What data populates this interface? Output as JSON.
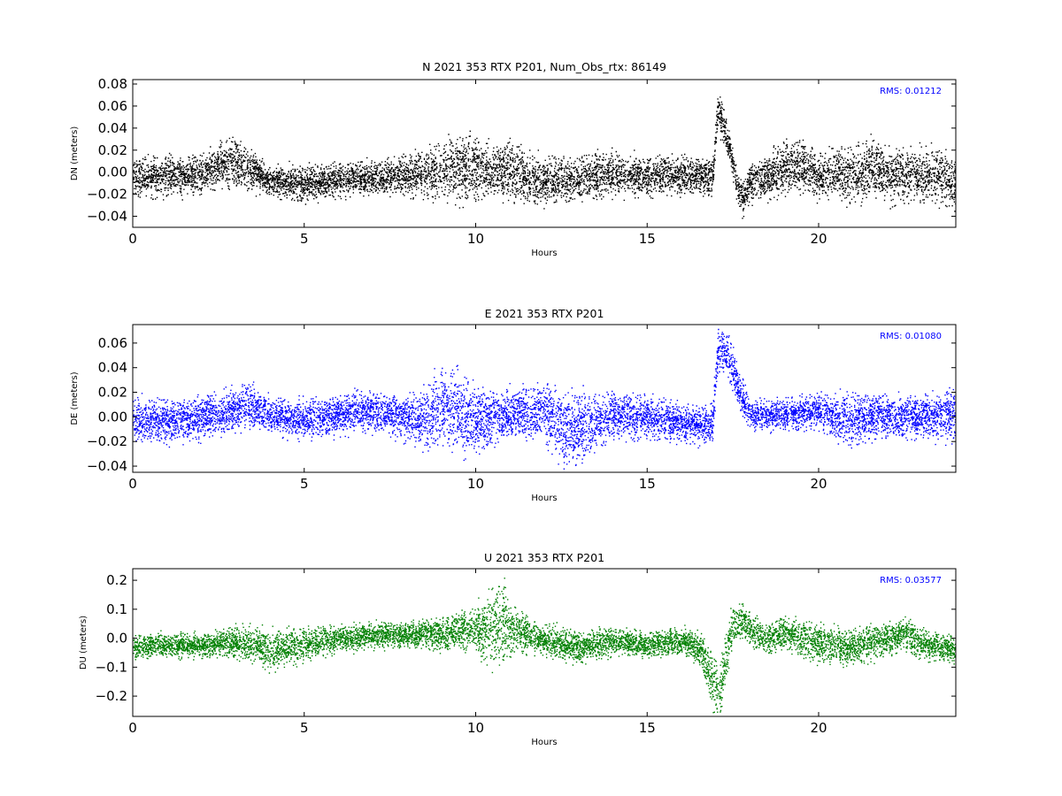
{
  "chart_data": [
    {
      "type": "scatter",
      "title": "N 2021 353 RTX  P201, Num_Obs_rtx: 86149",
      "xlabel": "Hours",
      "ylabel": "DN (meters)",
      "xlim": [
        0,
        24
      ],
      "ylim": [
        -0.05,
        0.084
      ],
      "xticks": [
        "0",
        "5",
        "10",
        "15",
        "20"
      ],
      "yticks": [
        "0.08",
        "0.06",
        "0.04",
        "0.02",
        "0.00",
        "−0.02",
        "−0.04"
      ],
      "xtick_values": [
        0,
        5,
        10,
        15,
        20
      ],
      "ytick_values": [
        0.08,
        0.06,
        0.04,
        0.02,
        0.0,
        -0.02,
        -0.04
      ],
      "color": "#000000",
      "annotation": "RMS:  0.01212",
      "annotation_color": "#0000ff",
      "grid": false,
      "series_trend": {
        "x": [
          0,
          1,
          2,
          2.5,
          3,
          3.5,
          4,
          5,
          6,
          7,
          8,
          9,
          9.5,
          10,
          10.5,
          11,
          12,
          13,
          14,
          15,
          16,
          16.9,
          17.05,
          17.2,
          17.4,
          17.6,
          17.8,
          18,
          18.5,
          19,
          19.5,
          20,
          20.5,
          21,
          21.5,
          22,
          22.5,
          23,
          23.5,
          24
        ],
        "y": [
          -0.005,
          -0.003,
          -0.002,
          0.008,
          0.009,
          0.002,
          -0.008,
          -0.01,
          -0.006,
          -0.004,
          -0.002,
          0.002,
          0.005,
          0.003,
          0.0,
          0.002,
          -0.008,
          -0.006,
          0.0,
          -0.003,
          -0.002,
          -0.004,
          0.06,
          0.045,
          0.02,
          -0.01,
          -0.025,
          -0.008,
          -0.002,
          0.004,
          0.006,
          -0.004,
          -0.002,
          0.0,
          0.003,
          -0.003,
          0.0,
          -0.004,
          -0.002,
          -0.01
        ],
        "spread": [
          0.008,
          0.008,
          0.008,
          0.009,
          0.01,
          0.008,
          0.007,
          0.007,
          0.007,
          0.007,
          0.008,
          0.012,
          0.014,
          0.013,
          0.011,
          0.012,
          0.01,
          0.009,
          0.009,
          0.008,
          0.008,
          0.008,
          0.008,
          0.008,
          0.006,
          0.006,
          0.007,
          0.008,
          0.009,
          0.01,
          0.011,
          0.009,
          0.01,
          0.012,
          0.012,
          0.011,
          0.011,
          0.011,
          0.011,
          0.011
        ]
      }
    },
    {
      "type": "scatter",
      "title": "E 2021 353 RTX  P201",
      "xlabel": "Hours",
      "ylabel": "DE (meters)",
      "xlim": [
        0,
        24
      ],
      "ylim": [
        -0.045,
        0.075
      ],
      "xticks": [
        "0",
        "5",
        "10",
        "15",
        "20"
      ],
      "yticks": [
        "0.06",
        "0.04",
        "0.02",
        "0.00",
        "−0.02",
        "−0.04"
      ],
      "xtick_values": [
        0,
        5,
        10,
        15,
        20
      ],
      "ytick_values": [
        0.06,
        0.04,
        0.02,
        0.0,
        -0.02,
        -0.04
      ],
      "color": "#0000ff",
      "annotation": "RMS:  0.01080",
      "annotation_color": "#0000ff",
      "grid": false,
      "series_trend": {
        "x": [
          0,
          1,
          2,
          3,
          3.3,
          4,
          5,
          6,
          6.5,
          7,
          8,
          8.5,
          9,
          9.5,
          10,
          11,
          12,
          12.5,
          13,
          14,
          15,
          16,
          16.9,
          17.05,
          17.3,
          17.6,
          17.8,
          18,
          19,
          20,
          20.5,
          21,
          21.5,
          22,
          23,
          24
        ],
        "y": [
          -0.003,
          -0.003,
          0.0,
          0.006,
          0.012,
          0.002,
          -0.002,
          0.002,
          0.005,
          0.004,
          0.0,
          -0.002,
          0.01,
          0.004,
          -0.004,
          0.003,
          0.004,
          -0.008,
          -0.01,
          0.002,
          0.0,
          -0.005,
          -0.006,
          0.055,
          0.052,
          0.03,
          0.012,
          0.002,
          0.002,
          0.005,
          -0.003,
          0.0,
          0.001,
          0.0,
          0.0,
          0.003
        ],
        "spread": [
          0.008,
          0.008,
          0.008,
          0.008,
          0.008,
          0.007,
          0.007,
          0.007,
          0.007,
          0.007,
          0.008,
          0.011,
          0.014,
          0.016,
          0.012,
          0.009,
          0.011,
          0.013,
          0.013,
          0.009,
          0.008,
          0.007,
          0.007,
          0.008,
          0.008,
          0.008,
          0.007,
          0.006,
          0.006,
          0.006,
          0.009,
          0.01,
          0.008,
          0.008,
          0.008,
          0.009
        ]
      }
    },
    {
      "type": "scatter",
      "title": "U 2021 353 RTX  P201",
      "xlabel": "Hours",
      "ylabel": "DU (meters)",
      "xlim": [
        0,
        24
      ],
      "ylim": [
        -0.27,
        0.24
      ],
      "xticks": [
        "0",
        "5",
        "10",
        "15",
        "20"
      ],
      "yticks": [
        "0.2",
        "0.1",
        "0.0",
        "−0.1",
        "−0.2"
      ],
      "xtick_values": [
        0,
        5,
        10,
        15,
        20
      ],
      "ytick_values": [
        0.2,
        0.1,
        0.0,
        -0.1,
        -0.2
      ],
      "color": "#008000",
      "annotation": "RMS:  0.03577",
      "annotation_color": "#0000ff",
      "grid": false,
      "series_trend": {
        "x": [
          0,
          1,
          2,
          3,
          4,
          4.5,
          5,
          6,
          7,
          8,
          9,
          10,
          10.5,
          10.8,
          11,
          12,
          13,
          14,
          15,
          16,
          16.5,
          17.1,
          17.3,
          17.5,
          17.8,
          18,
          18.5,
          19,
          19.5,
          20,
          21,
          22,
          22.5,
          23,
          24
        ],
        "y": [
          -0.03,
          -0.02,
          -0.025,
          -0.01,
          -0.04,
          -0.03,
          -0.02,
          0.0,
          0.01,
          0.015,
          0.02,
          0.03,
          0.04,
          0.06,
          0.03,
          -0.01,
          -0.03,
          -0.01,
          -0.02,
          -0.01,
          -0.03,
          -0.2,
          -0.05,
          0.05,
          0.06,
          0.03,
          0.0,
          0.02,
          0.0,
          -0.02,
          -0.03,
          0.0,
          0.02,
          -0.02,
          -0.04
        ],
        "spread": [
          0.018,
          0.018,
          0.02,
          0.025,
          0.03,
          0.03,
          0.025,
          0.02,
          0.02,
          0.02,
          0.025,
          0.035,
          0.06,
          0.07,
          0.04,
          0.025,
          0.025,
          0.022,
          0.02,
          0.02,
          0.025,
          0.05,
          0.04,
          0.03,
          0.03,
          0.025,
          0.025,
          0.025,
          0.03,
          0.03,
          0.03,
          0.025,
          0.025,
          0.025,
          0.02
        ]
      }
    }
  ]
}
